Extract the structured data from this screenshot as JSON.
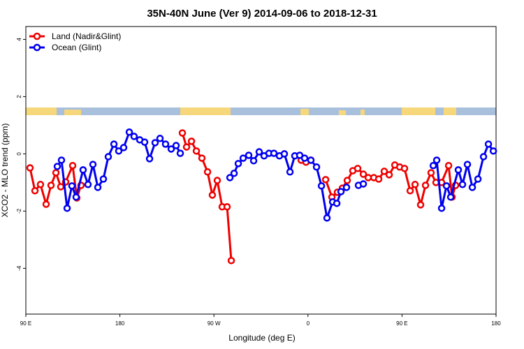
{
  "chart_data": {
    "type": "line",
    "title": "35N-40N June (Ver 9)   2014-09-06 to 2018-12-31",
    "x_label": "Longitude (deg E)",
    "y_label": "XCO2 - MLO trend (ppm)",
    "xlim": [
      90,
      540
    ],
    "ylim": [
      -5.6,
      4.45
    ],
    "xticks": [
      {
        "value": 90,
        "label": "90 E"
      },
      180,
      {
        "value": 270,
        "label": "90 W"
      },
      {
        "value": 360,
        "label": "0"
      },
      {
        "value": 450,
        "label": "90 E"
      },
      {
        "value": 540,
        "label": "180"
      }
    ],
    "yticks": [
      -4,
      -2,
      0,
      2,
      4
    ],
    "legend": "top-left",
    "series": [
      {
        "name": "Land (Nadir&Glint)",
        "color": "#ee0000",
        "x": [
          94.0,
          98.7,
          104.0,
          109.4,
          114.1,
          118.8,
          123.4,
          128.1,
          134.8,
          138.8,
          142.8,
          null,
          239.8,
          243.8,
          248.5,
          253.2,
          258.5,
          263.9,
          268.5,
          273.2,
          277.9,
          282.6,
          286.6,
          null,
          353.5,
          358.1,
          362.8,
          null,
          376.9,
          382.9,
          388.2,
          392.9,
          397.6,
          402.9,
          407.6,
          413.0,
          417.7,
          423.0,
          427.7,
          433.0,
          437.7,
          443.1,
          447.8,
          452.4,
          457.8,
          462.5,
          467.8,
          472.5,
          477.8,
          482.5,
          487.9,
          494.6,
          497.9,
          501.3
        ],
        "values": [
          -0.49,
          -1.29,
          -1.07,
          -1.76,
          -1.1,
          -0.66,
          -1.15,
          -0.98,
          -0.41,
          -1.54,
          -1.1,
          null,
          0.73,
          0.24,
          0.44,
          0.1,
          -0.15,
          -0.63,
          -1.44,
          -0.93,
          -1.85,
          -1.85,
          -3.73,
          null,
          -0.22,
          -0.29,
          -0.22,
          null,
          -0.9,
          -1.51,
          -1.34,
          -1.2,
          -0.93,
          -0.59,
          -0.51,
          -0.71,
          -0.83,
          -0.83,
          -0.88,
          -0.61,
          -0.73,
          -0.39,
          -0.46,
          -0.51,
          -1.29,
          -1.07,
          -1.78,
          -1.1,
          -0.66,
          -1.0,
          -1.0,
          -0.41,
          -1.51,
          -1.1
        ]
      },
      {
        "name": "Ocean (Glint)",
        "color": "#0000ee",
        "x": [
          120.1,
          124.1,
          129.5,
          134.1,
          138.1,
          144.8,
          149.5,
          154.2,
          158.9,
          164.2,
          168.9,
          174.3,
          178.9,
          183.6,
          189.0,
          193.6,
          199.0,
          203.7,
          208.4,
          213.7,
          218.4,
          223.7,
          229.1,
          233.8,
          237.8,
          null,
          285.3,
          289.3,
          293.3,
          298.0,
          303.3,
          308.0,
          313.3,
          318.0,
          322.7,
          327.4,
          332.7,
          337.4,
          342.8,
          347.4,
          352.1,
          356.8,
          362.8,
          368.2,
          372.9,
          378.2,
          383.6,
          387.6,
          391.6,
          396.9,
          null,
          408.3,
          413.0,
          null,
          479.9,
          483.2,
          487.9,
          492.6,
          496.6,
          503.9,
          507.9,
          512.6,
          517.3,
          522.7,
          528.0,
          532.7,
          537.4
        ],
        "values": [
          -0.44,
          -0.22,
          -1.9,
          -1.12,
          -1.51,
          -0.56,
          -1.07,
          -0.37,
          -1.17,
          -0.88,
          -0.1,
          0.34,
          0.1,
          0.22,
          0.76,
          0.61,
          0.49,
          0.41,
          -0.17,
          0.39,
          0.54,
          0.34,
          0.17,
          0.29,
          0.02,
          null,
          -0.83,
          -0.68,
          -0.34,
          -0.15,
          -0.05,
          -0.24,
          0.07,
          -0.07,
          0.02,
          0.02,
          -0.07,
          0.0,
          -0.63,
          -0.07,
          -0.05,
          -0.15,
          -0.22,
          -0.46,
          -1.12,
          -2.24,
          -1.68,
          -1.73,
          -1.32,
          -1.17,
          null,
          -1.1,
          -1.05,
          null,
          -0.41,
          -0.22,
          -1.9,
          -1.12,
          -1.51,
          -0.56,
          -1.07,
          -0.37,
          -1.17,
          -0.88,
          -0.1,
          0.34,
          0.1
        ]
      }
    ]
  }
}
